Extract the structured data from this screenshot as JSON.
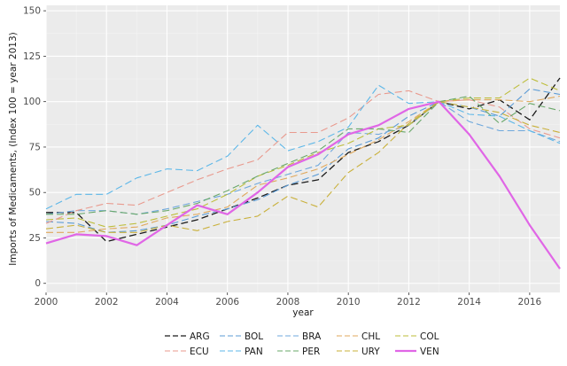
{
  "chart_data": {
    "type": "line",
    "xlabel": "year",
    "ylabel": "Imports of Medicaments, (Index 100 = year 2013)",
    "xlim": [
      2000,
      2017
    ],
    "ylim": [
      -5,
      153
    ],
    "x_ticks": [
      2000,
      2002,
      2004,
      2006,
      2008,
      2010,
      2012,
      2014,
      2016
    ],
    "y_ticks": [
      0,
      25,
      50,
      75,
      100,
      125,
      150
    ],
    "grid": true,
    "legend_position": "bottom",
    "x": [
      2000,
      2001,
      2002,
      2003,
      2004,
      2005,
      2006,
      2007,
      2008,
      2009,
      2010,
      2011,
      2012,
      2013,
      2014,
      2015,
      2016,
      2017
    ],
    "series": [
      {
        "name": "ARG",
        "color": "#1a1a1a",
        "dash": "8,4",
        "width": 1.3,
        "values": [
          39,
          39,
          23,
          27,
          31,
          35,
          41,
          47,
          54,
          57,
          72,
          78,
          87,
          100,
          96,
          101,
          90,
          113
        ]
      },
      {
        "name": "BOL",
        "color": "#5b9bd5",
        "dash": "8,4",
        "width": 1.1,
        "values": [
          34,
          33,
          28,
          29,
          32,
          37,
          41,
          46,
          54,
          60,
          74,
          80,
          92,
          100,
          97,
          92,
          107,
          104
        ]
      },
      {
        "name": "BRA",
        "color": "#6fa8dc",
        "dash": "8,4",
        "width": 1.1,
        "values": [
          38,
          40,
          40,
          38,
          41,
          45,
          49,
          55,
          60,
          65,
          83,
          82,
          87,
          100,
          89,
          84,
          84,
          78
        ]
      },
      {
        "name": "CHL",
        "color": "#e0a85c",
        "dash": "8,4",
        "width": 1.1,
        "values": [
          28,
          28,
          30,
          31,
          36,
          38,
          42,
          54,
          58,
          63,
          71,
          79,
          89,
          100,
          101,
          101,
          100,
          103
        ]
      },
      {
        "name": "COL",
        "color": "#bdbd3a",
        "dash": "8,4",
        "width": 1.1,
        "values": [
          35,
          36,
          31,
          33,
          37,
          41,
          49,
          59,
          65,
          72,
          77,
          85,
          87,
          100,
          102,
          102,
          113,
          106
        ]
      },
      {
        "name": "ECU",
        "color": "#e99a8e",
        "dash": "8,4",
        "width": 1.1,
        "values": [
          33,
          40,
          44,
          43,
          50,
          57,
          63,
          68,
          83,
          83,
          91,
          104,
          106,
          100,
          101,
          97,
          85,
          80
        ]
      },
      {
        "name": "PAN",
        "color": "#5db7e8",
        "dash": "8,4",
        "width": 1.1,
        "values": [
          41,
          49,
          49,
          58,
          63,
          62,
          70,
          87,
          73,
          78,
          86,
          109,
          99,
          100,
          93,
          92,
          84,
          77
        ]
      },
      {
        "name": "PER",
        "color": "#6aa86a",
        "dash": "8,4",
        "width": 1.1,
        "values": [
          38,
          38,
          40,
          38,
          40,
          44,
          51,
          59,
          66,
          73,
          85,
          85,
          83,
          100,
          103,
          88,
          99,
          95
        ]
      },
      {
        "name": "URY",
        "color": "#c9b03a",
        "dash": "8,4",
        "width": 1.1,
        "values": [
          30,
          32,
          28,
          28,
          32,
          29,
          34,
          37,
          48,
          42,
          61,
          72,
          88,
          100,
          97,
          94,
          87,
          83
        ]
      },
      {
        "name": "VEN",
        "color": "#e066e6",
        "dash": "",
        "width": 2.2,
        "values": [
          22,
          27,
          26,
          21,
          32,
          43,
          38,
          50,
          64,
          71,
          82,
          87,
          96,
          100,
          82,
          59,
          32,
          8
        ]
      }
    ]
  }
}
